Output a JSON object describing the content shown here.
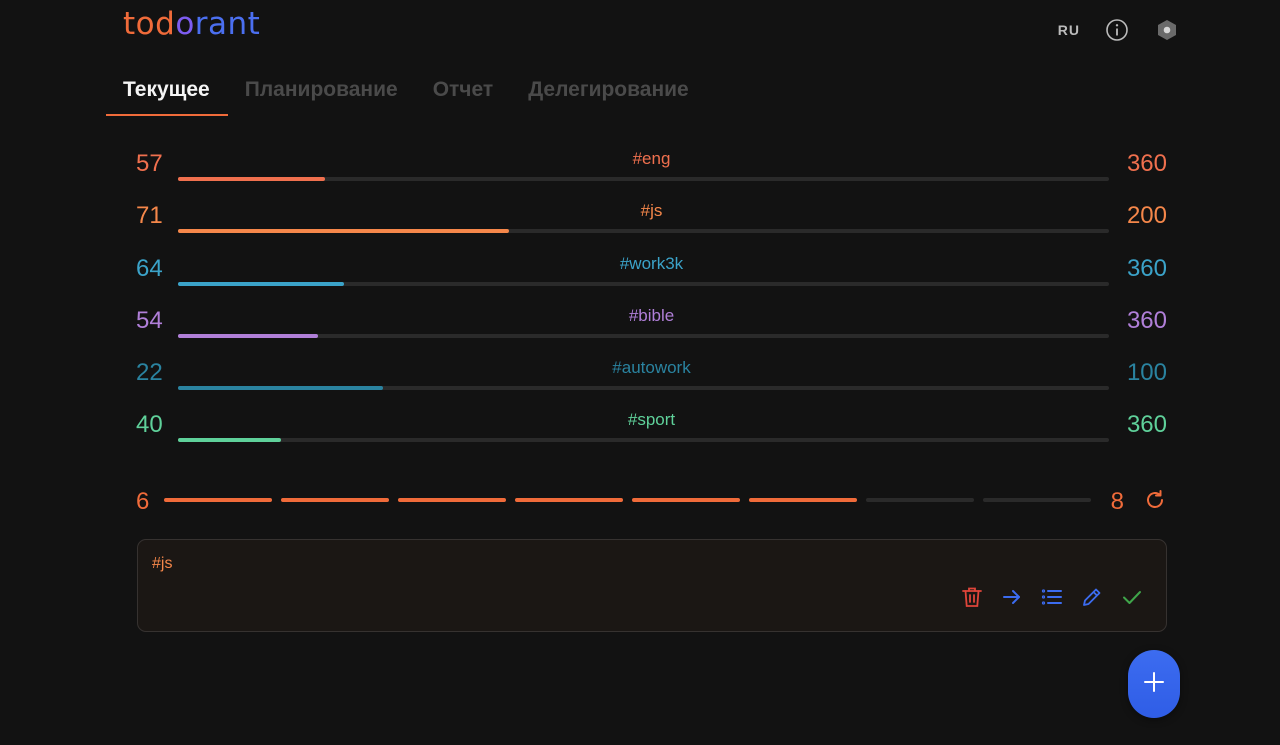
{
  "app": {
    "logo": {
      "part1": "tod",
      "part2": "o",
      "part3": "rant"
    },
    "language": "RU"
  },
  "tabs": [
    {
      "label": "Текущее",
      "active": true
    },
    {
      "label": "Планирование",
      "active": false
    },
    {
      "label": "Отчет",
      "active": false
    },
    {
      "label": "Делегирование",
      "active": false
    }
  ],
  "progress_rows": [
    {
      "tag": "#eng",
      "done": 57,
      "total": 360,
      "color": "#f0704e"
    },
    {
      "tag": "#js",
      "done": 71,
      "total": 200,
      "color": "#f5874a"
    },
    {
      "tag": "#work3k",
      "done": 64,
      "total": 360,
      "color": "#3ba3c9"
    },
    {
      "tag": "#bible",
      "done": 54,
      "total": 360,
      "color": "#b07fd8"
    },
    {
      "tag": "#autowork",
      "done": 22,
      "total": 100,
      "color": "#2a83a0"
    },
    {
      "tag": "#sport",
      "done": 40,
      "total": 360,
      "color": "#5fd19a"
    }
  ],
  "epic": {
    "done": "6",
    "total": "8",
    "segments_total": 8,
    "segments_done": 6,
    "color": "#f06b3a"
  },
  "current_todo": {
    "text": "#js",
    "actions": [
      "trash-icon",
      "arrow-right-icon",
      "list-icon",
      "pencil-icon",
      "check-icon"
    ]
  },
  "fab": {
    "icon": "plus-icon"
  },
  "colors": {
    "background": "#121212",
    "accent": "#f06b3a",
    "brand_blue": "#3c6cf0"
  }
}
